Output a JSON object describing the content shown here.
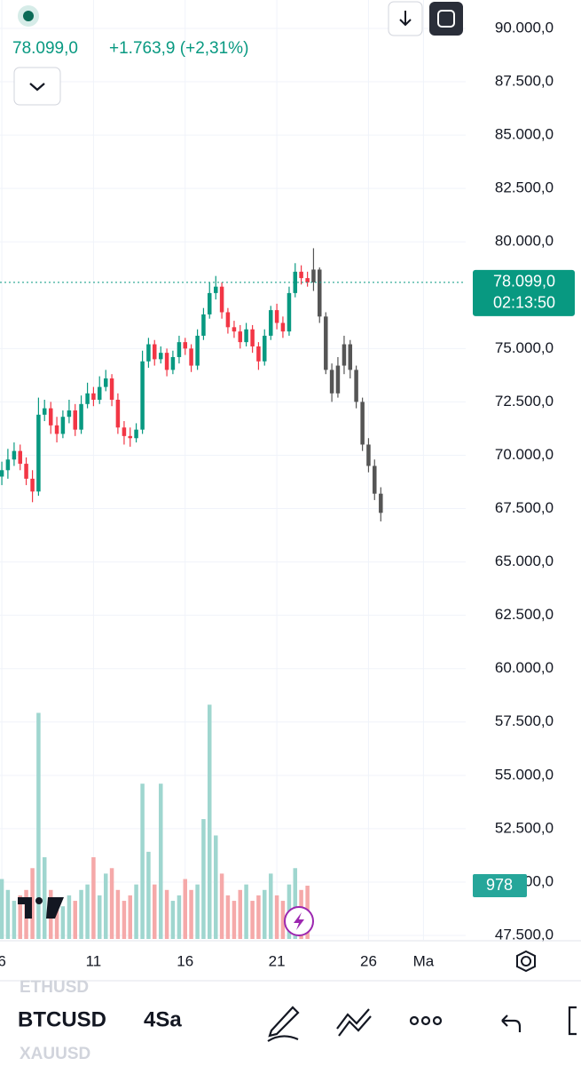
{
  "chart_data": {
    "type": "candlestick",
    "x": [
      6,
      6.33,
      6.67,
      7,
      7.33,
      7.67,
      8,
      8.33,
      8.67,
      9,
      9.33,
      9.67,
      10,
      10.33,
      10.67,
      11,
      11.33,
      11.67,
      12,
      12.33,
      12.67,
      13,
      13.33,
      13.67,
      14,
      14.33,
      14.67,
      15,
      15.33,
      15.67,
      16,
      16.33,
      16.67,
      17,
      17.33,
      17.67,
      18,
      18.33,
      18.67,
      19,
      19.33,
      19.67,
      20,
      20.33,
      20.67,
      21,
      21.33,
      21.67,
      22,
      22.33,
      22.67
    ],
    "open": [
      69000,
      69300,
      69800,
      70200,
      69600,
      68900,
      68300,
      71900,
      72200,
      71400,
      71000,
      71800,
      72100,
      71200,
      72400,
      72900,
      72600,
      73200,
      73600,
      72600,
      71300,
      70900,
      70800,
      71200,
      74400,
      75200,
      74500,
      74800,
      74000,
      74600,
      75300,
      75000,
      74200,
      75600,
      76600,
      77600,
      77900,
      76700,
      76000,
      75800,
      75300,
      75900,
      75100,
      74400,
      75600,
      76800,
      76200,
      75800,
      77600,
      78600,
      78300
    ],
    "high": [
      69700,
      70300,
      70600,
      70500,
      69900,
      69300,
      72700,
      72600,
      72500,
      71800,
      72100,
      72600,
      72400,
      72800,
      73400,
      73200,
      73700,
      74000,
      73800,
      72900,
      71600,
      71300,
      71500,
      74900,
      75500,
      75400,
      75100,
      75000,
      74900,
      75600,
      75500,
      75200,
      75900,
      76900,
      78100,
      78400,
      78100,
      76900,
      76300,
      76100,
      76200,
      76100,
      75300,
      75900,
      77000,
      77100,
      76500,
      77900,
      79000,
      78900,
      78600
    ],
    "low": [
      68600,
      68900,
      69500,
      69300,
      68600,
      67800,
      68100,
      71600,
      71000,
      70600,
      70800,
      71500,
      70900,
      71000,
      72200,
      72300,
      72400,
      73000,
      72300,
      71000,
      70500,
      70400,
      70600,
      71000,
      74100,
      74200,
      74300,
      73700,
      73800,
      74300,
      74700,
      73900,
      74000,
      75400,
      76400,
      77300,
      76400,
      75700,
      75500,
      75000,
      75100,
      74800,
      74000,
      74200,
      75400,
      75900,
      75500,
      75600,
      77400,
      78000,
      77900
    ],
    "close": [
      69300,
      69800,
      70200,
      69600,
      68900,
      68300,
      71900,
      72200,
      71400,
      71000,
      71800,
      72100,
      71200,
      72400,
      72900,
      72600,
      73200,
      73600,
      72600,
      71300,
      70900,
      70800,
      71200,
      74400,
      75200,
      74500,
      74800,
      74000,
      74600,
      75300,
      75000,
      74200,
      75600,
      76600,
      77600,
      77900,
      76700,
      76000,
      75800,
      75300,
      75900,
      75100,
      74400,
      75600,
      76800,
      76200,
      75800,
      77600,
      78600,
      78300,
      78099
    ],
    "volumes": [
      1100,
      900,
      700,
      800,
      900,
      1300,
      4150,
      1500,
      900,
      700,
      600,
      800,
      700,
      900,
      1000,
      1500,
      800,
      1200,
      1300,
      900,
      700,
      800,
      1000,
      2850,
      1600,
      1000,
      2850,
      900,
      700,
      800,
      1100,
      900,
      1000,
      2200,
      4300,
      1900,
      1200,
      800,
      700,
      900,
      1000,
      700,
      800,
      900,
      1200,
      800,
      700,
      1000,
      1300,
      900,
      978
    ],
    "up_color": "#089981",
    "down_color": "#f23645",
    "volume_up_color": "#9fd6cf",
    "volume_down_color": "#f5a9a9",
    "projection": {
      "color": "#555555",
      "x": [
        23,
        23.33,
        23.67,
        24,
        24.33,
        24.67,
        25,
        25.33,
        25.67,
        26,
        26.33,
        26.67
      ],
      "open": [
        78100,
        78700,
        76500,
        74000,
        72900,
        74200,
        75200,
        74000,
        72500,
        70500,
        69500,
        68200
      ],
      "high": [
        79700,
        78800,
        76700,
        74300,
        74600,
        75600,
        75400,
        74200,
        72700,
        70800,
        69800,
        68500
      ],
      "low": [
        77700,
        76200,
        73800,
        72500,
        72700,
        73800,
        73600,
        72200,
        70200,
        69200,
        67900,
        66900
      ],
      "close": [
        78700,
        76500,
        74000,
        72900,
        74200,
        75200,
        74000,
        72500,
        70500,
        69500,
        68200,
        67300
      ]
    },
    "last_price": {
      "value": 78099,
      "label": "78.099,0"
    },
    "change": "+1.763,9 (+2,31%)",
    "countdown": "02:13:50",
    "xlim": [
      5.9,
      31.3
    ],
    "xticks": [
      6,
      11,
      16,
      21,
      26,
      {
        "value": 29,
        "label": "Ma"
      }
    ],
    "ylim": [
      47500,
      90000
    ],
    "yticks": [
      {
        "value": 90000,
        "label": "90.000,0"
      },
      {
        "value": 87500,
        "label": "87.500,0"
      },
      {
        "value": 85000,
        "label": "85.000,0"
      },
      {
        "value": 82500,
        "label": "82.500,0"
      },
      {
        "value": 80000,
        "label": "80.000,0"
      },
      {
        "value": 75000,
        "label": "75.000,0"
      },
      {
        "value": 72500,
        "label": "72.500,0"
      },
      {
        "value": 70000,
        "label": "70.000,0"
      },
      {
        "value": 67500,
        "label": "67.500,0"
      },
      {
        "value": 65000,
        "label": "65.000,0"
      },
      {
        "value": 62500,
        "label": "62.500,0"
      },
      {
        "value": 60000,
        "label": "60.000,0"
      },
      {
        "value": 57500,
        "label": "57.500,0"
      },
      {
        "value": 55000,
        "label": "55.000,0"
      },
      {
        "value": 52500,
        "label": "52.500,0"
      },
      {
        "value": 50000,
        "label": "50.000,0"
      },
      {
        "value": 47500,
        "label": "47.500,0"
      }
    ],
    "vlim": [
      0,
      4500
    ],
    "grid": true
  },
  "toolbar": {
    "symbol_above": "ETHUSD",
    "symbol": "BTCUSD",
    "symbol_below": "XAUUSD",
    "interval": "4Sa"
  }
}
